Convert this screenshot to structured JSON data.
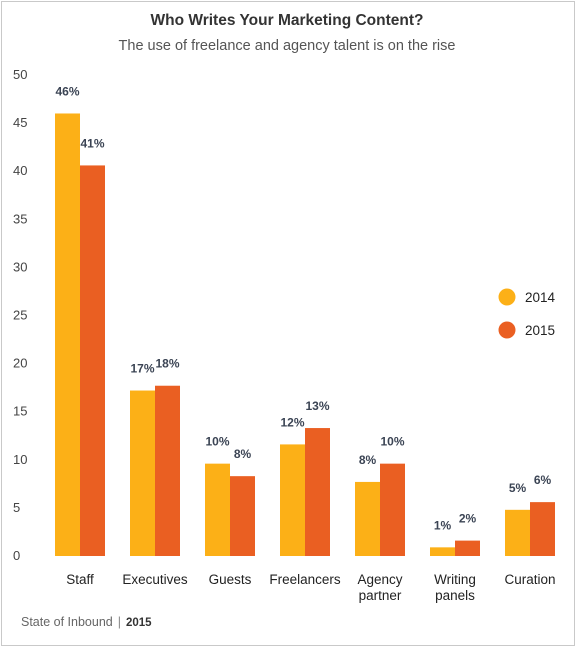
{
  "title": "Who Writes Your Marketing Content?",
  "subtitle": "The use of freelance and agency talent is on the rise",
  "footer": {
    "source": "State of Inbound",
    "separator": "|",
    "year": "2015"
  },
  "colors": {
    "series_2014": "#fcb017",
    "series_2015": "#ea5f22",
    "label": "#3b4454",
    "axis_text": "#444444"
  },
  "chart_data": {
    "type": "bar",
    "title": "Who Writes Your Marketing Content?",
    "subtitle": "The use of freelance and agency talent is on the rise",
    "categories": [
      [
        "Staff"
      ],
      [
        "Executives"
      ],
      [
        "Guests"
      ],
      [
        "Freelancers"
      ],
      [
        "Agency",
        "partner"
      ],
      [
        "Writing",
        "panels"
      ],
      [
        "Curation"
      ]
    ],
    "series": [
      {
        "name": "2014",
        "values": [
          46,
          17,
          10,
          12,
          8,
          1,
          5
        ],
        "labels": [
          "46%",
          "17%",
          "10%",
          "12%",
          "8%",
          "1%",
          "5%"
        ]
      },
      {
        "name": "2015",
        "values": [
          41,
          18,
          8,
          13,
          10,
          2,
          6
        ],
        "labels": [
          "41%",
          "18%",
          "8%",
          "13%",
          "10%",
          "2%",
          "6%"
        ]
      }
    ],
    "drawn_values": [
      [
        46,
        17.2,
        9.6,
        11.6,
        7.7,
        0.9,
        4.8
      ],
      [
        40.6,
        17.7,
        8.3,
        13.3,
        9.6,
        1.6,
        5.6
      ]
    ],
    "yticks": [
      0,
      5,
      10,
      15,
      20,
      25,
      30,
      35,
      40,
      45,
      50
    ],
    "ylim": [
      0,
      50
    ],
    "xlabel": "",
    "ylabel": "",
    "grid": false,
    "legend_position": "right"
  }
}
